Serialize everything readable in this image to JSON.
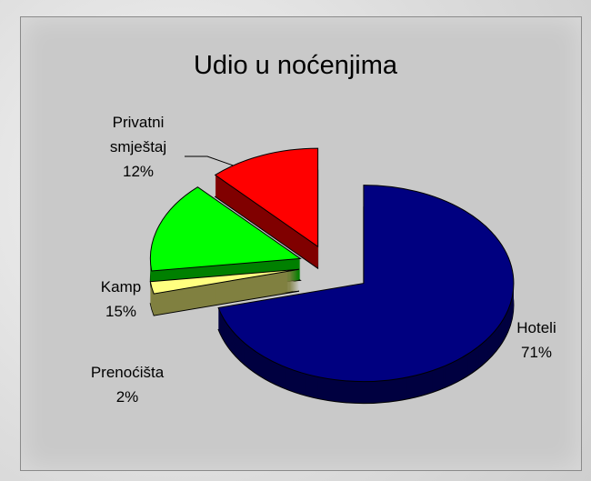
{
  "chart_data": {
    "type": "pie",
    "title": "Udio u noćenjima",
    "categories": [
      "Hoteli",
      "Prenoćišta",
      "Kamp",
      "Privatni smještaj"
    ],
    "values": [
      71,
      2,
      15,
      12
    ],
    "value_labels": [
      "71%",
      "2%",
      "15%",
      "12%"
    ],
    "colors": [
      "#000080",
      "#ffff80",
      "#00ff00",
      "#ff0000"
    ]
  }
}
